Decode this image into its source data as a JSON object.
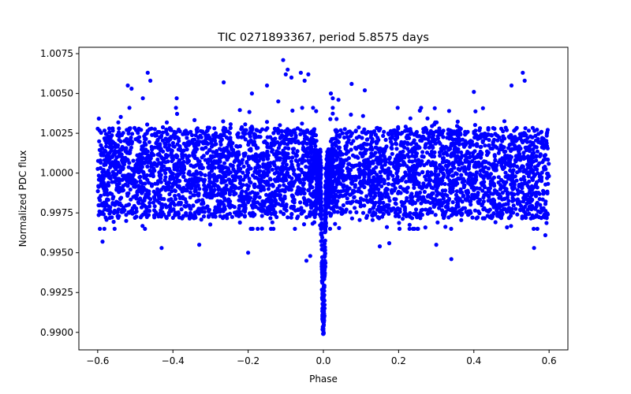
{
  "chart_data": {
    "type": "scatter",
    "title": "TIC 0271893367, period 5.8575 days",
    "xlabel": "Phase",
    "ylabel": "Normalized PDC flux",
    "xlim": [
      -0.65,
      0.65
    ],
    "ylim": [
      0.9889,
      1.0079
    ],
    "grid": false,
    "marker_color": "#0000ff",
    "marker": "filled circle",
    "x_ticks": [
      -0.6,
      -0.4,
      -0.2,
      0.0,
      0.2,
      0.4,
      0.6
    ],
    "x_tick_labels": [
      "−0.6",
      "−0.4",
      "−0.2",
      "0.0",
      "0.2",
      "0.4",
      "0.6"
    ],
    "y_ticks": [
      0.99,
      0.9925,
      0.995,
      0.9975,
      1.0,
      1.0025,
      1.005,
      1.0075
    ],
    "y_tick_labels": [
      "0.9900",
      "0.9925",
      "0.9950",
      "0.9975",
      "1.0000",
      "1.0025",
      "1.0050",
      "1.0075"
    ],
    "phase_range": [
      -0.6,
      0.6
    ],
    "out_of_transit": {
      "core_flux_range": [
        0.99715,
        1.00285
      ],
      "typical_scatter_max": 1.0041,
      "typical_scatter_min": 0.9965
    },
    "transit": {
      "center_phase": 0.0,
      "phase_half_width": 0.018,
      "minimum_flux": 0.9899,
      "ingress_dip_phases": [
        -0.012,
        0.012
      ]
    },
    "outliers": [
      {
        "x": -0.587,
        "y": 0.9957
      },
      {
        "x": -0.52,
        "y": 1.0055
      },
      {
        "x": -0.51,
        "y": 1.0053
      },
      {
        "x": -0.48,
        "y": 1.0047
      },
      {
        "x": -0.467,
        "y": 1.0063
      },
      {
        "x": -0.46,
        "y": 1.0058
      },
      {
        "x": -0.43,
        "y": 0.9953
      },
      {
        "x": -0.39,
        "y": 1.0047
      },
      {
        "x": -0.33,
        "y": 0.9955
      },
      {
        "x": -0.265,
        "y": 1.0057
      },
      {
        "x": -0.2,
        "y": 0.995
      },
      {
        "x": -0.19,
        "y": 1.005
      },
      {
        "x": -0.15,
        "y": 1.0055
      },
      {
        "x": -0.12,
        "y": 1.0045
      },
      {
        "x": -0.107,
        "y": 1.0071
      },
      {
        "x": -0.1,
        "y": 1.0062
      },
      {
        "x": -0.095,
        "y": 1.0065
      },
      {
        "x": -0.085,
        "y": 1.006
      },
      {
        "x": -0.06,
        "y": 1.0063
      },
      {
        "x": -0.05,
        "y": 1.0058
      },
      {
        "x": -0.04,
        "y": 1.0062
      },
      {
        "x": -0.045,
        "y": 0.9945
      },
      {
        "x": -0.035,
        "y": 0.9948
      },
      {
        "x": 0.02,
        "y": 1.005
      },
      {
        "x": 0.025,
        "y": 1.0047
      },
      {
        "x": 0.04,
        "y": 1.0046
      },
      {
        "x": 0.075,
        "y": 1.0056
      },
      {
        "x": 0.11,
        "y": 1.0052
      },
      {
        "x": 0.15,
        "y": 0.9954
      },
      {
        "x": 0.175,
        "y": 0.9956
      },
      {
        "x": 0.3,
        "y": 0.9955
      },
      {
        "x": 0.34,
        "y": 0.9946
      },
      {
        "x": 0.4,
        "y": 1.0051
      },
      {
        "x": 0.5,
        "y": 1.0055
      },
      {
        "x": 0.53,
        "y": 1.0063
      },
      {
        "x": 0.535,
        "y": 1.0058
      },
      {
        "x": 0.56,
        "y": 0.9953
      },
      {
        "x": 0.59,
        "y": 0.9961
      }
    ]
  }
}
